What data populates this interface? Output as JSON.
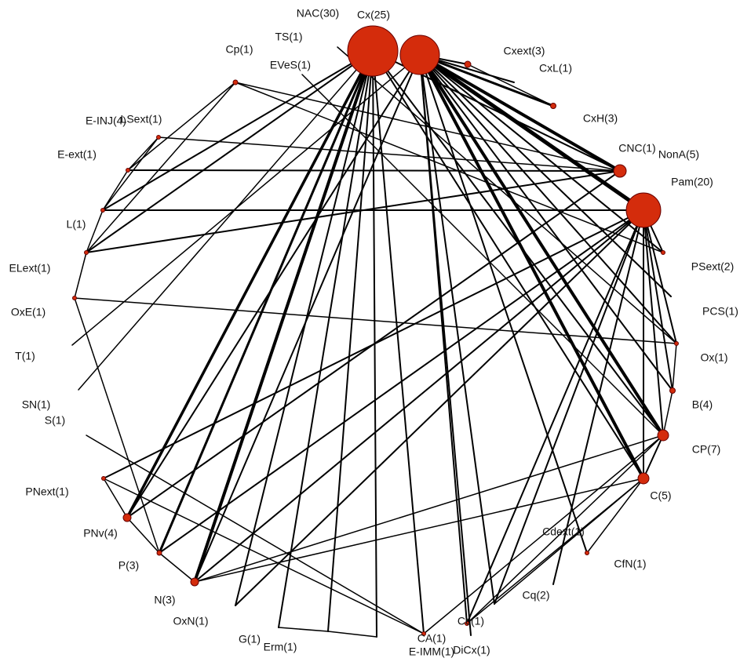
{
  "title": null,
  "nodes": [
    {
      "label": "NAC(30)"
    },
    {
      "label": "Cx(25)"
    },
    {
      "label": "TS(1)"
    },
    {
      "label": "Cp(1)"
    },
    {
      "label": "EVeS(1)"
    },
    {
      "label": "Cxext(3)"
    },
    {
      "label": "CxL(1)"
    },
    {
      "label": "CxH(3)"
    },
    {
      "label": "E-INJ(4)"
    },
    {
      "label": "LSext(1)"
    },
    {
      "label": "CNC(1)"
    },
    {
      "label": "NonA(5)"
    },
    {
      "label": "Pam(20)"
    },
    {
      "label": "E-ext(1)"
    },
    {
      "label": "L(1)"
    },
    {
      "label": "PSext(2)"
    },
    {
      "label": "ELext(1)"
    },
    {
      "label": "OxE(1)"
    },
    {
      "label": "PCS(1)"
    },
    {
      "label": "T(1)"
    },
    {
      "label": "Ox(1)"
    },
    {
      "label": "SN(1)"
    },
    {
      "label": "S(1)"
    },
    {
      "label": "B(4)"
    },
    {
      "label": "CP(7)"
    },
    {
      "label": "PNext(1)"
    },
    {
      "label": "C(5)"
    },
    {
      "label": "PNv(4)"
    },
    {
      "label": "Cdext(1)"
    },
    {
      "label": "CfN(1)"
    },
    {
      "label": "P(3)"
    },
    {
      "label": "N(3)"
    },
    {
      "label": "Cq(2)"
    },
    {
      "label": "OxN(1)"
    },
    {
      "label": "CA(1)"
    },
    {
      "label": "Cc(1)"
    },
    {
      "label": "G(1)"
    },
    {
      "label": "Erm(1)"
    },
    {
      "label": "E-IMM(1)"
    },
    {
      "label": "DiCx(1)"
    }
  ]
}
